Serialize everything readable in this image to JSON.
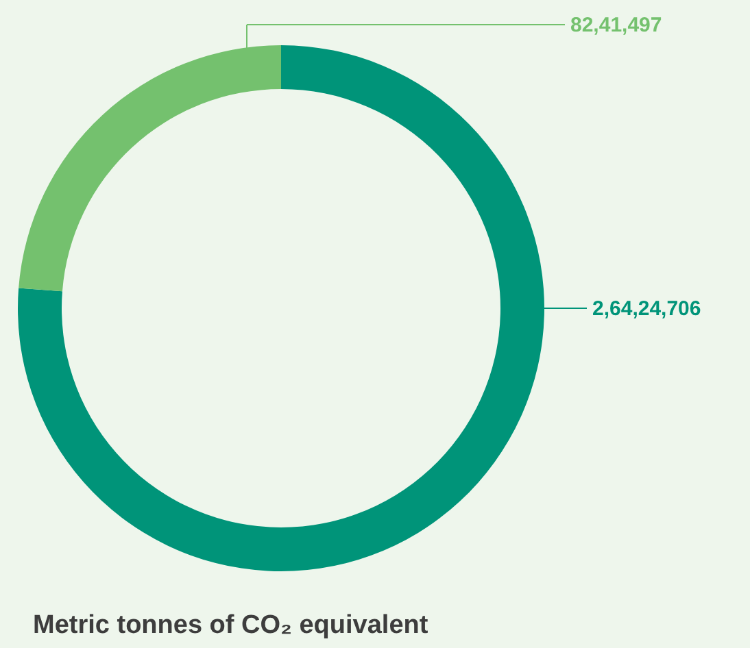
{
  "chart_data": {
    "type": "donut",
    "title": "Metric tonnes of CO₂ equivalent",
    "categories": [
      null,
      null
    ],
    "values": [
      26424706,
      8241497
    ],
    "colors": [
      "#009479",
      "#74c16e"
    ],
    "value_labels": [
      "2,64,24,706",
      "82,41,497"
    ]
  }
}
